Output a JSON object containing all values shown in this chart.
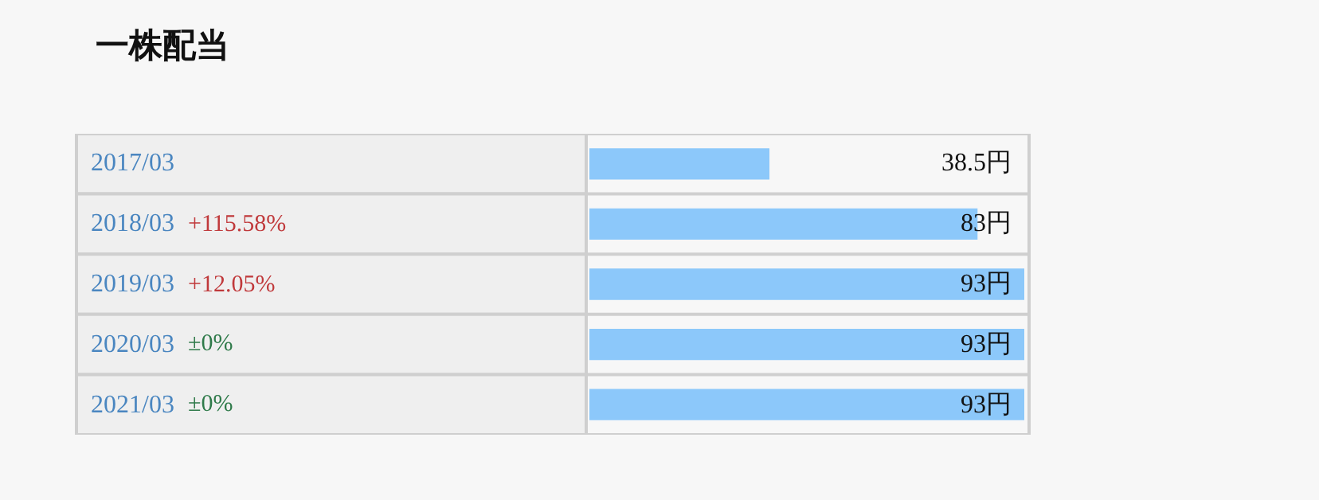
{
  "chart_data": {
    "type": "bar",
    "orientation": "horizontal",
    "title": "一株配当",
    "categories": [
      "2017/03",
      "2018/03",
      "2019/03",
      "2020/03",
      "2021/03"
    ],
    "values": [
      38.5,
      83,
      93,
      93,
      93
    ],
    "color": "#8cc8fa",
    "value_labels": [
      "38.5円",
      "83円",
      "93円",
      "93円",
      "93円"
    ],
    "xlim": [
      0,
      93
    ],
    "legend": false,
    "annotations": [
      "+115.58%",
      "+12.05%",
      "±0%",
      "±0%"
    ]
  }
}
